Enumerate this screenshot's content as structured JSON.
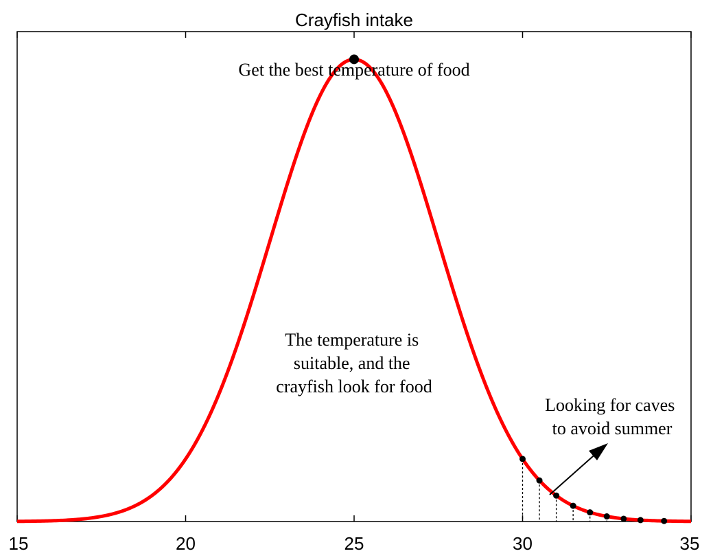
{
  "chart_data": {
    "type": "line",
    "title": "Crayfish intake",
    "xlabel": "",
    "ylabel": "",
    "xlim": [
      15,
      35
    ],
    "ylim": [
      0,
      1.06
    ],
    "x_ticks": [
      "15",
      "20",
      "25",
      "30",
      "35"
    ],
    "y_ticks_shown": false,
    "grid": false,
    "legend": "none",
    "line_color": "#ff0000",
    "series": [
      {
        "distribution": "gaussian",
        "peak_x": 25,
        "peak_y": 1.0,
        "sigma": 2.5
      }
    ],
    "peak_point": {
      "x": 25,
      "y": 1.0
    },
    "marked_points_x": [
      30,
      30.5,
      31,
      31.5,
      32,
      32.5,
      33,
      33.5,
      34.2
    ],
    "annotations": {
      "peak_label": "Get the best temperature of food",
      "suitable_label": [
        "The temperature is",
        "suitable, and the",
        "crayfish look for food"
      ],
      "caves_label": [
        "Looking for caves",
        "to avoid summer"
      ]
    }
  }
}
